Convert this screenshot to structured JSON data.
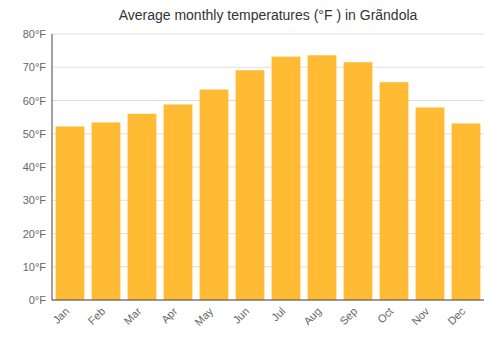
{
  "chart_data": {
    "type": "bar",
    "title": "Average monthly temperatures (°F ) in Grãndola",
    "categories": [
      "Jan",
      "Feb",
      "Mar",
      "Apr",
      "May",
      "Jun",
      "Jul",
      "Aug",
      "Sep",
      "Oct",
      "Nov",
      "Dec"
    ],
    "values": [
      52.2,
      53.4,
      56.0,
      58.8,
      63.3,
      69.1,
      73.2,
      73.6,
      71.5,
      65.5,
      57.9,
      53.1
    ],
    "color": "#FFBB33",
    "ylim": [
      0,
      80
    ],
    "yticks": [
      {
        "value": 0,
        "label": "0°F"
      },
      {
        "value": 10,
        "label": "10°F"
      },
      {
        "value": 20,
        "label": "20°F"
      },
      {
        "value": 30,
        "label": "30°F"
      },
      {
        "value": 40,
        "label": "40°F"
      },
      {
        "value": 50,
        "label": "50°F"
      },
      {
        "value": 60,
        "label": "60°F"
      },
      {
        "value": 70,
        "label": "70°F"
      },
      {
        "value": 80,
        "label": "80°F"
      }
    ],
    "grid": true
  }
}
